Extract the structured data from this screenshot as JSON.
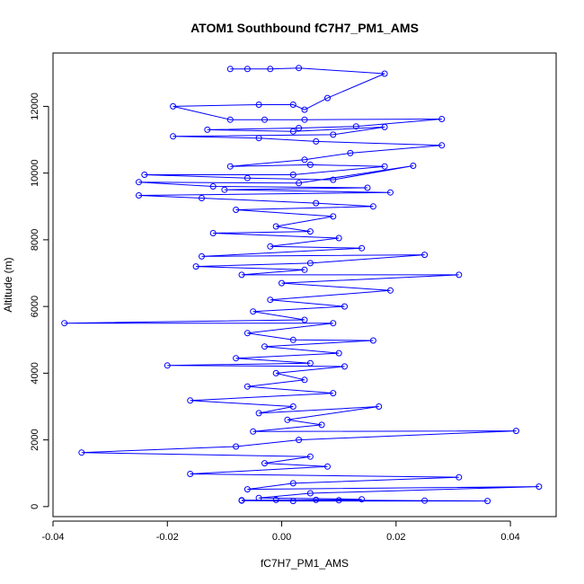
{
  "chart_data": {
    "type": "line",
    "title": "ATOM1 Southbound fC7H7_PM1_AMS",
    "xlabel": "fC7H7_PM1_AMS",
    "ylabel": "Altitude (m)",
    "xlim": [
      -0.04,
      0.048
    ],
    "ylim": [
      -300,
      13600
    ],
    "x_ticks": [
      -0.04,
      -0.02,
      0.0,
      0.02,
      0.04
    ],
    "x_tick_labels": [
      "-0.04",
      "-0.02",
      "0.00",
      "0.02",
      "0.04"
    ],
    "y_ticks": [
      0,
      2000,
      4000,
      6000,
      8000,
      10000,
      12000
    ],
    "y_tick_labels": [
      "0",
      "2000",
      "4000",
      "6000",
      "8000",
      "10000",
      "12000"
    ],
    "grid": false,
    "markers": "open circles",
    "series": [
      {
        "color": "#0000ff",
        "points": [
          [
            -0.009,
            13120
          ],
          [
            -0.006,
            13120
          ],
          [
            -0.002,
            13120
          ],
          [
            0.003,
            13150
          ],
          [
            0.018,
            12980
          ],
          [
            0.008,
            12250
          ],
          [
            0.004,
            11900
          ],
          [
            0.002,
            12050
          ],
          [
            -0.004,
            12050
          ],
          [
            -0.019,
            12000
          ],
          [
            -0.009,
            11600
          ],
          [
            -0.003,
            11600
          ],
          [
            0.004,
            11600
          ],
          [
            0.028,
            11620
          ],
          [
            0.013,
            11400
          ],
          [
            0.003,
            11350
          ],
          [
            -0.013,
            11300
          ],
          [
            0.002,
            11250
          ],
          [
            0.018,
            11380
          ],
          [
            0.009,
            11150
          ],
          [
            -0.019,
            11100
          ],
          [
            -0.004,
            11050
          ],
          [
            0.006,
            10950
          ],
          [
            0.028,
            10830
          ],
          [
            0.012,
            10600
          ],
          [
            0.004,
            10400
          ],
          [
            -0.009,
            10200
          ],
          [
            0.005,
            10250
          ],
          [
            0.018,
            10200
          ],
          [
            0.002,
            9950
          ],
          [
            -0.024,
            9950
          ],
          [
            -0.006,
            9850
          ],
          [
            0.009,
            9800
          ],
          [
            0.023,
            10220
          ],
          [
            0.003,
            9700
          ],
          [
            -0.025,
            9730
          ],
          [
            -0.012,
            9600
          ],
          [
            0.015,
            9560
          ],
          [
            -0.01,
            9500
          ],
          [
            0.019,
            9420
          ],
          [
            -0.025,
            9330
          ],
          [
            -0.014,
            9250
          ],
          [
            0.006,
            9100
          ],
          [
            0.016,
            9000
          ],
          [
            -0.008,
            8900
          ],
          [
            0.009,
            8700
          ],
          [
            -0.001,
            8400
          ],
          [
            0.005,
            8250
          ],
          [
            -0.012,
            8200
          ],
          [
            0.01,
            8050
          ],
          [
            -0.002,
            7800
          ],
          [
            0.014,
            7750
          ],
          [
            -0.014,
            7500
          ],
          [
            0.025,
            7550
          ],
          [
            0.005,
            7300
          ],
          [
            -0.015,
            7200
          ],
          [
            0.004,
            7100
          ],
          [
            -0.007,
            6950
          ],
          [
            0.031,
            6950
          ],
          [
            0.0,
            6700
          ],
          [
            0.019,
            6480
          ],
          [
            -0.002,
            6200
          ],
          [
            0.011,
            6000
          ],
          [
            -0.005,
            5850
          ],
          [
            0.004,
            5600
          ],
          [
            -0.038,
            5500
          ],
          [
            0.009,
            5500
          ],
          [
            -0.006,
            5200
          ],
          [
            0.002,
            5000
          ],
          [
            0.016,
            4980
          ],
          [
            -0.003,
            4800
          ],
          [
            0.01,
            4600
          ],
          [
            -0.008,
            4450
          ],
          [
            0.005,
            4300
          ],
          [
            -0.02,
            4230
          ],
          [
            0.011,
            4200
          ],
          [
            -0.001,
            4000
          ],
          [
            0.004,
            3800
          ],
          [
            -0.006,
            3600
          ],
          [
            0.009,
            3400
          ],
          [
            -0.016,
            3180
          ],
          [
            0.002,
            3000
          ],
          [
            -0.004,
            2800
          ],
          [
            0.017,
            3000
          ],
          [
            0.001,
            2600
          ],
          [
            0.007,
            2450
          ],
          [
            -0.005,
            2250
          ],
          [
            0.041,
            2270
          ],
          [
            0.003,
            2000
          ],
          [
            -0.008,
            1800
          ],
          [
            -0.035,
            1620
          ],
          [
            0.005,
            1500
          ],
          [
            -0.003,
            1300
          ],
          [
            0.008,
            1200
          ],
          [
            -0.016,
            980
          ],
          [
            0.031,
            880
          ],
          [
            0.002,
            700
          ],
          [
            -0.006,
            520
          ],
          [
            0.045,
            600
          ],
          [
            0.005,
            400
          ],
          [
            -0.004,
            260
          ],
          [
            0.014,
            220
          ],
          [
            -0.007,
            180
          ],
          [
            0.002,
            170
          ],
          [
            0.036,
            170
          ],
          [
            0.01,
            190
          ],
          [
            -0.001,
            200
          ],
          [
            0.025,
            180
          ],
          [
            0.006,
            200
          ],
          [
            -0.007,
            190
          ]
        ]
      }
    ]
  }
}
